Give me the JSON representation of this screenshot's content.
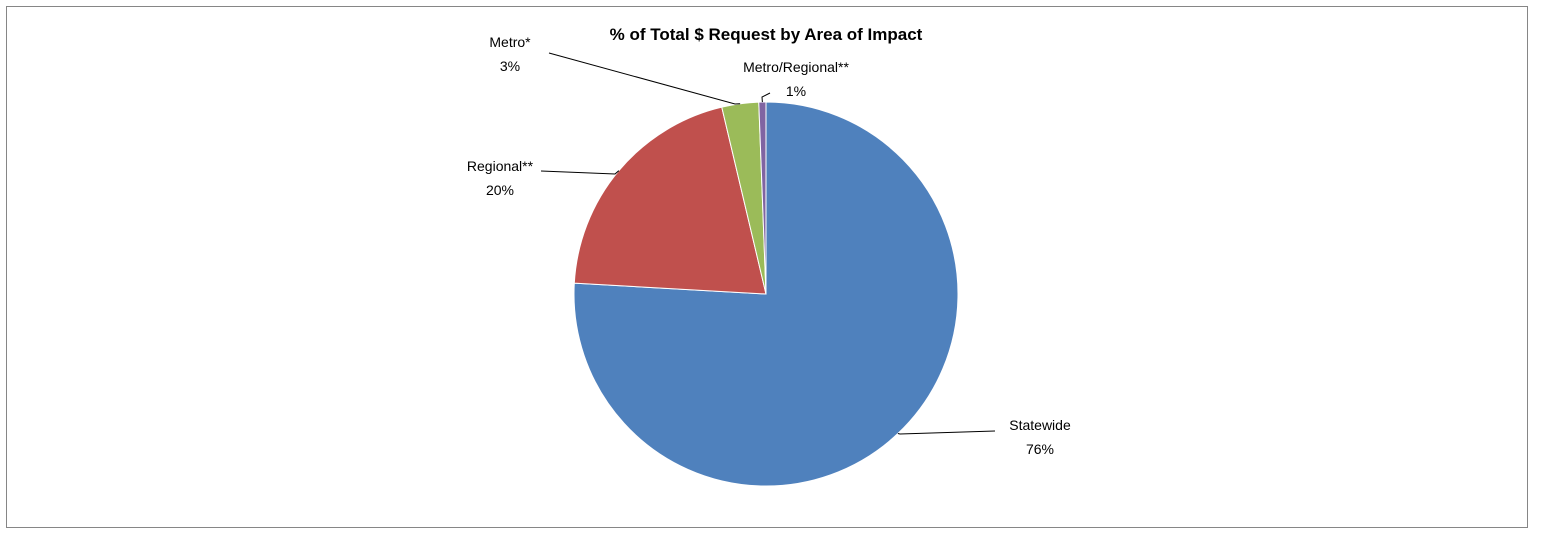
{
  "chart_data": {
    "type": "pie",
    "title": "% of Total $ Request by Area of Impact",
    "slices": [
      {
        "label": "Statewide",
        "pct_label": "76%",
        "value": 75.9,
        "color": "#4f81bd"
      },
      {
        "label": "Regional**",
        "pct_label": "20%",
        "value": 20.4,
        "color": "#c0504d"
      },
      {
        "label": "Metro*",
        "pct_label": "3%",
        "value": 3.1,
        "color": "#9bbb59"
      },
      {
        "label": "Metro/Regional**",
        "pct_label": "1%",
        "value": 0.6,
        "color": "#8064a2"
      }
    ],
    "start": "12 o'clock",
    "direction": "clockwise",
    "legend": "none",
    "data_labels": "outside with leader lines"
  }
}
